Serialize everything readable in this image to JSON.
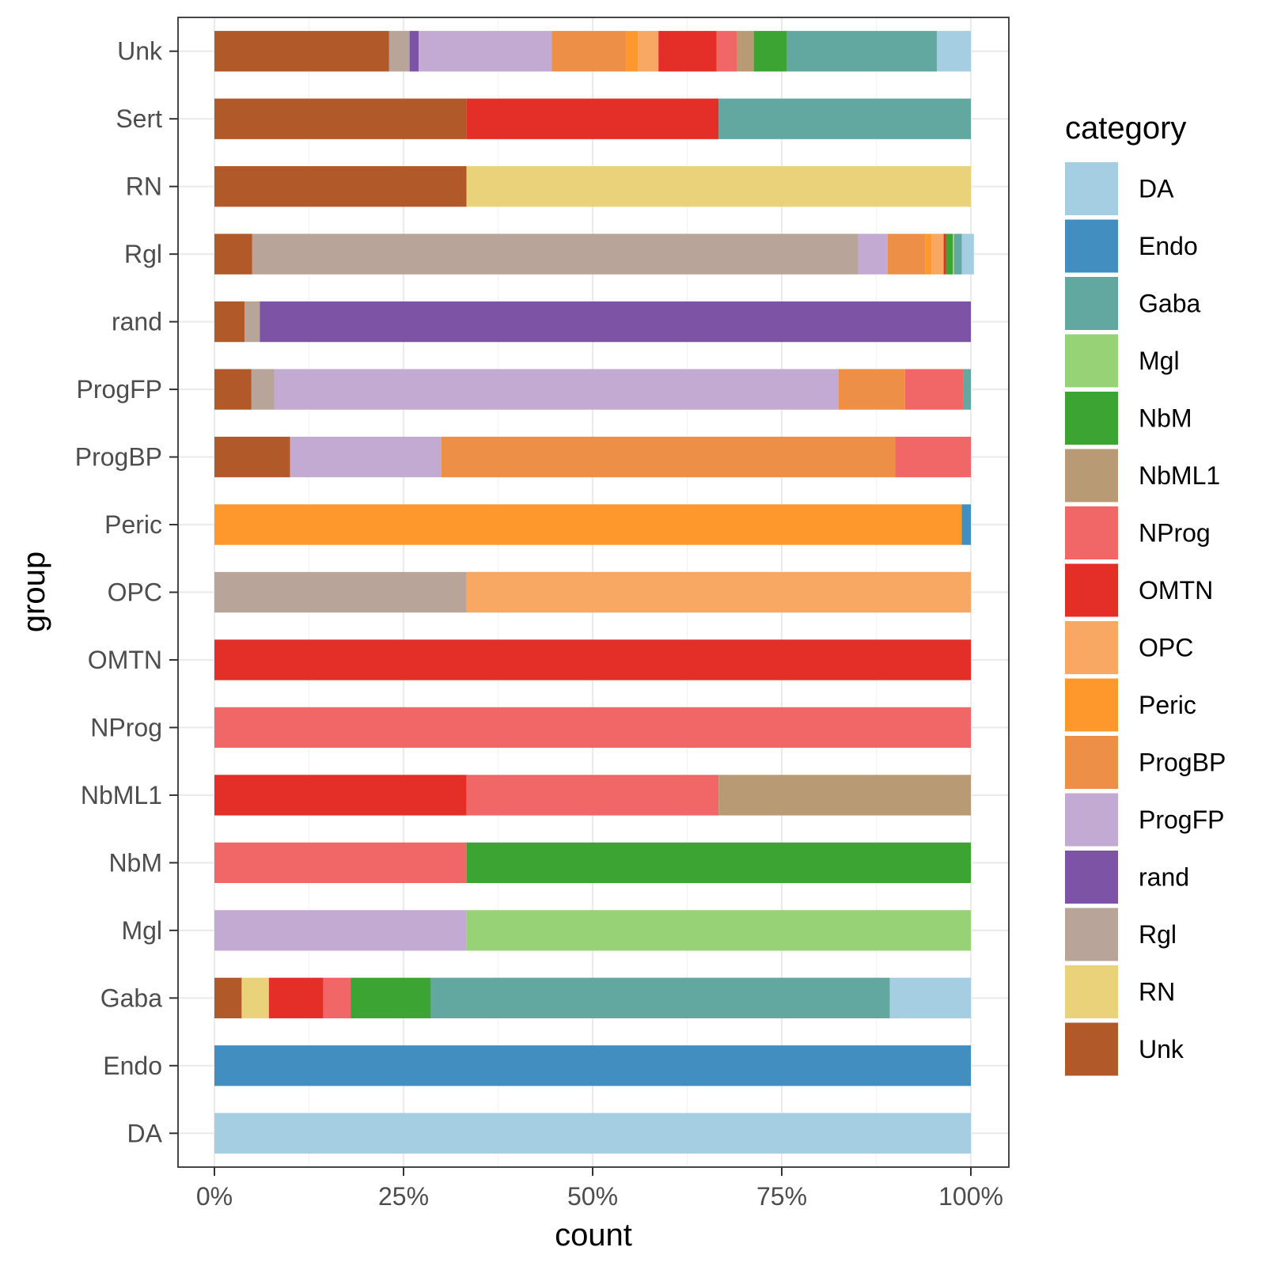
{
  "chart_data": {
    "type": "bar",
    "orientation": "horizontal",
    "stacking": "percent",
    "xlabel": "count",
    "ylabel": "group",
    "xlim": [
      0,
      1
    ],
    "x_ticks": [
      {
        "value": 0,
        "label": "0%"
      },
      {
        "value": 0.25,
        "label": "25%"
      },
      {
        "value": 0.5,
        "label": "50%"
      },
      {
        "value": 0.75,
        "label": "75%"
      },
      {
        "value": 1,
        "label": "100%"
      }
    ],
    "grid": true,
    "legend": {
      "title": "category",
      "position": "right"
    },
    "categories": [
      "DA",
      "Endo",
      "Gaba",
      "Mgl",
      "NbM",
      "NbML1",
      "NProg",
      "OMTN",
      "OPC",
      "Peric",
      "ProgBP",
      "ProgFP",
      "rand",
      "Rgl",
      "RN",
      "Unk"
    ],
    "colors": {
      "DA": "#A6CEE3",
      "Endo": "#438EC1",
      "Gaba": "#63A8A0",
      "Mgl": "#98D277",
      "NbM": "#3BA432",
      "NbML1": "#B89B74",
      "NProg": "#F16667",
      "OMTN": "#E42F29",
      "OPC": "#F8A862",
      "Peric": "#FE982C",
      "ProgBP": "#ED8F47",
      "ProgFP": "#C3AAD2",
      "rand": "#7D54A5",
      "Rgl": "#B9A499",
      "RN": "#EAD27A",
      "Unk": "#B15928"
    },
    "groups": [
      {
        "name": "DA",
        "segments": [
          [
            "DA",
            1.0
          ]
        ]
      },
      {
        "name": "Endo",
        "segments": [
          [
            "Endo",
            1.0
          ]
        ]
      },
      {
        "name": "Gaba",
        "segments": [
          [
            "Unk",
            0.036
          ],
          [
            "RN",
            0.036
          ],
          [
            "OMTN",
            0.072
          ],
          [
            "NProg",
            0.036
          ],
          [
            "NbM",
            0.106
          ],
          [
            "Gaba",
            0.607
          ],
          [
            "DA",
            0.107
          ]
        ]
      },
      {
        "name": "Mgl",
        "segments": [
          [
            "ProgFP",
            0.3333
          ],
          [
            "Mgl",
            0.6667
          ]
        ]
      },
      {
        "name": "NbM",
        "segments": [
          [
            "NProg",
            0.3333
          ],
          [
            "NbM",
            0.6667
          ]
        ]
      },
      {
        "name": "NbML1",
        "segments": [
          [
            "OMTN",
            0.3333
          ],
          [
            "NProg",
            0.3333
          ],
          [
            "NbML1",
            0.3334
          ]
        ]
      },
      {
        "name": "NProg",
        "segments": [
          [
            "NProg",
            1.0
          ]
        ]
      },
      {
        "name": "OMTN",
        "segments": [
          [
            "OMTN",
            1.0
          ]
        ]
      },
      {
        "name": "OPC",
        "segments": [
          [
            "Rgl",
            0.3333
          ],
          [
            "OPC",
            0.6667
          ]
        ]
      },
      {
        "name": "Peric",
        "segments": [
          [
            "Peric",
            0.988
          ],
          [
            "Endo",
            0.012
          ]
        ]
      },
      {
        "name": "ProgBP",
        "segments": [
          [
            "Unk",
            0.1
          ],
          [
            "ProgFP",
            0.2
          ],
          [
            "ProgBP",
            0.6
          ],
          [
            "NProg",
            0.1
          ]
        ]
      },
      {
        "name": "ProgFP",
        "segments": [
          [
            "Unk",
            0.049
          ],
          [
            "Rgl",
            0.03
          ],
          [
            "ProgFP",
            0.746
          ],
          [
            "ProgBP",
            0.088
          ],
          [
            "NProg",
            0.077
          ],
          [
            "Gaba",
            0.01
          ]
        ]
      },
      {
        "name": "rand",
        "segments": [
          [
            "Unk",
            0.04
          ],
          [
            "Rgl",
            0.02
          ],
          [
            "rand",
            0.94
          ]
        ]
      },
      {
        "name": "Rgl",
        "segments": [
          [
            "Unk",
            0.05
          ],
          [
            "Rgl",
            0.801
          ],
          [
            "ProgFP",
            0.039
          ],
          [
            "ProgBP",
            0.05
          ],
          [
            "Peric",
            0.008
          ],
          [
            "OPC",
            0.016
          ],
          [
            "OMTN",
            0.003
          ],
          [
            "NbM",
            0.009
          ],
          [
            "Mgl",
            0.002
          ],
          [
            "Gaba",
            0.01
          ],
          [
            "DA",
            0.016
          ]
        ]
      },
      {
        "name": "RN",
        "segments": [
          [
            "Unk",
            0.3333
          ],
          [
            "RN",
            0.6667
          ]
        ]
      },
      {
        "name": "Sert",
        "segments": [
          [
            "Unk",
            0.3333
          ],
          [
            "OMTN",
            0.3333
          ],
          [
            "Gaba",
            0.3334
          ]
        ]
      },
      {
        "name": "Unk",
        "segments": [
          [
            "Unk",
            0.231
          ],
          [
            "Rgl",
            0.027
          ],
          [
            "rand",
            0.012
          ],
          [
            "ProgFP",
            0.176
          ],
          [
            "ProgBP",
            0.098
          ],
          [
            "Peric",
            0.016
          ],
          [
            "OPC",
            0.027
          ],
          [
            "OMTN",
            0.077
          ],
          [
            "NProg",
            0.027
          ],
          [
            "NbML1",
            0.022
          ],
          [
            "NbM",
            0.044
          ],
          [
            "Gaba",
            0.198
          ],
          [
            "DA",
            0.045
          ]
        ]
      }
    ]
  }
}
